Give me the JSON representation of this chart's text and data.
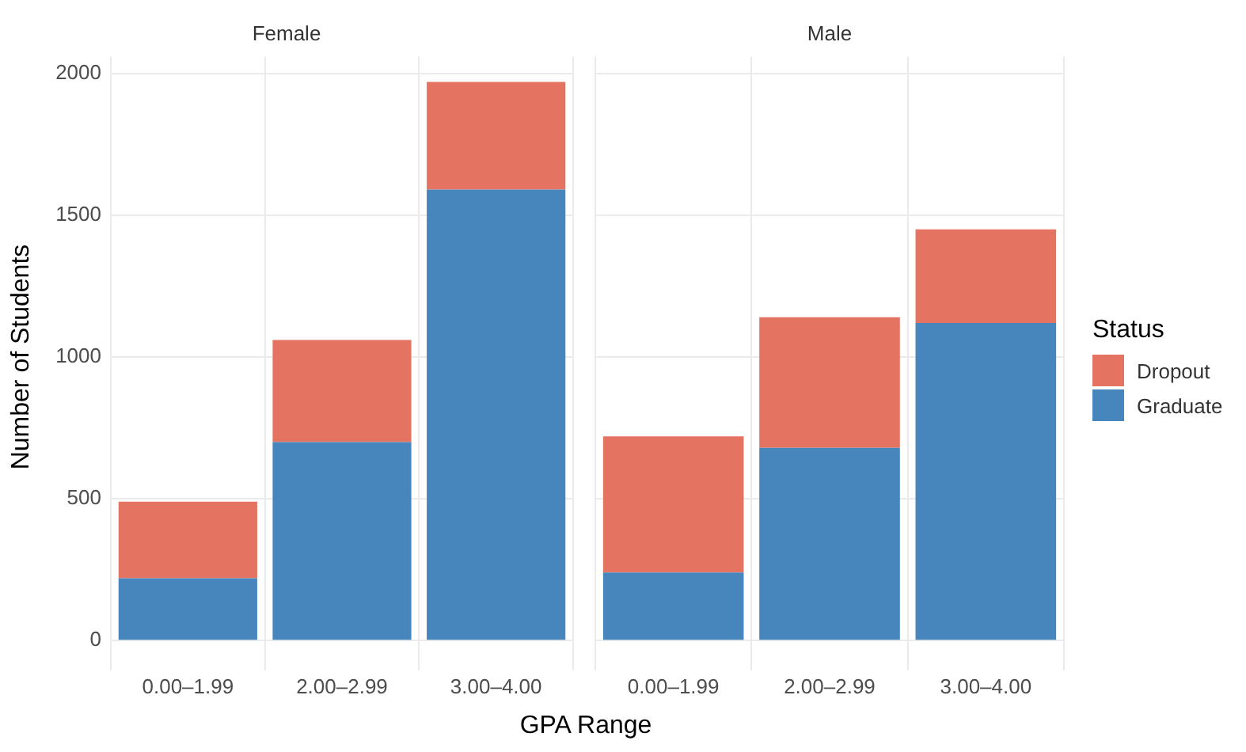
{
  "chart_data": [
    {
      "type": "bar",
      "title": "Female",
      "xlabel": "GPA Range",
      "ylabel": "Number of Students",
      "categories": [
        "0.00–1.99",
        "2.00–2.99",
        "3.00–4.00"
      ],
      "stacked": true,
      "series": [
        {
          "name": "Graduate",
          "color": "#4686bd",
          "values": [
            220,
            700,
            1590
          ]
        },
        {
          "name": "Dropout",
          "color": "#e57361",
          "values": [
            270,
            360,
            380
          ]
        }
      ],
      "ylim": [
        -60,
        2060
      ],
      "yticks": [
        0,
        500,
        1000,
        1500,
        2000
      ],
      "grid": true,
      "legend": "right",
      "legend_title": "Status"
    },
    {
      "type": "bar",
      "title": "Male",
      "categories": [
        "0.00–1.99",
        "2.00–2.99",
        "3.00–4.00"
      ],
      "stacked": true,
      "series": [
        {
          "color": "#4686bd",
          "values": [
            240,
            680,
            1120
          ]
        },
        {
          "color": "#e57361",
          "values": [
            480,
            460,
            330
          ]
        }
      ],
      "ylim": [
        -60,
        2060
      ],
      "yticks": [
        0,
        500,
        1000,
        1500,
        2000
      ],
      "grid": true,
      "tick_labels": "x"
    }
  ]
}
